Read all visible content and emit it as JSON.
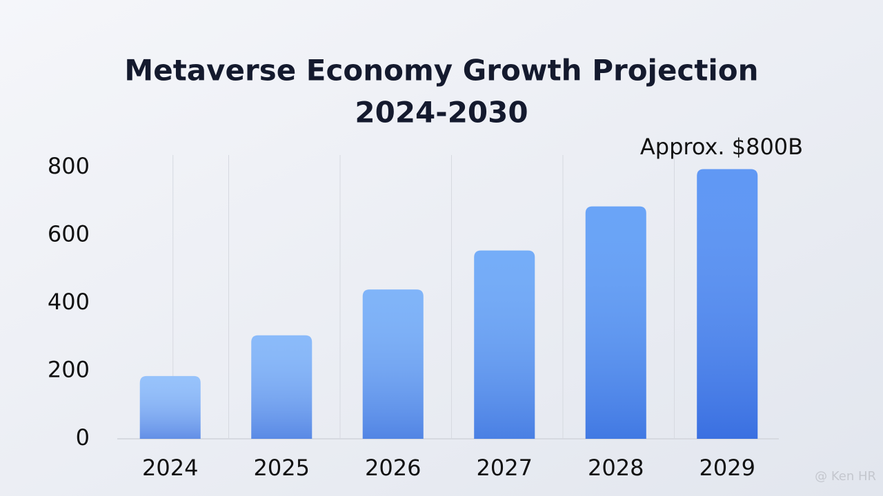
{
  "chart_data": {
    "type": "bar",
    "title": [
      "Metaverse Economy Growth Projection",
      "2024-2030"
    ],
    "categories": [
      "2024",
      "2025",
      "2026",
      "2027",
      "2028",
      "2029"
    ],
    "values": [
      185,
      305,
      440,
      555,
      685,
      795
    ],
    "colors": [
      "#88bafb",
      "#7ab1f9",
      "#6eaaf8",
      "#62a2f7",
      "#5598f6",
      "#4a8af3"
    ],
    "ylim": [
      0,
      800
    ],
    "yticks": [
      0,
      200,
      400,
      600,
      800
    ],
    "annotation": "Approx. $800B",
    "watermark": "@ Ken HR"
  }
}
